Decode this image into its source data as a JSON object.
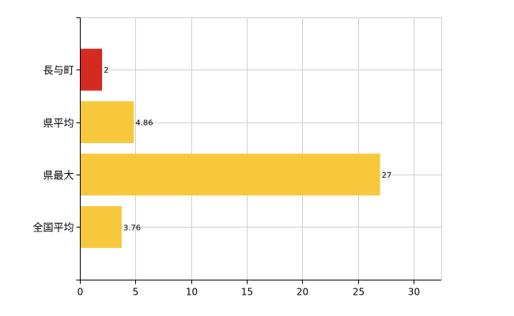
{
  "chart_data": {
    "type": "bar",
    "orientation": "horizontal",
    "categories": [
      "長与町",
      "県平均",
      "県最大",
      "全国平均"
    ],
    "values": [
      2,
      4.86,
      27,
      3.76
    ],
    "colors": [
      "#d42a1f",
      "#f8c83c",
      "#f8c83c",
      "#f8c83c"
    ],
    "data_labels": [
      "2",
      "4.86",
      "27",
      "3.76"
    ],
    "xlim": [
      0,
      32.5
    ],
    "x_ticks": [
      0,
      5,
      10,
      15,
      20,
      25,
      30
    ],
    "grid": true,
    "title": "",
    "xlabel": "",
    "ylabel": ""
  }
}
